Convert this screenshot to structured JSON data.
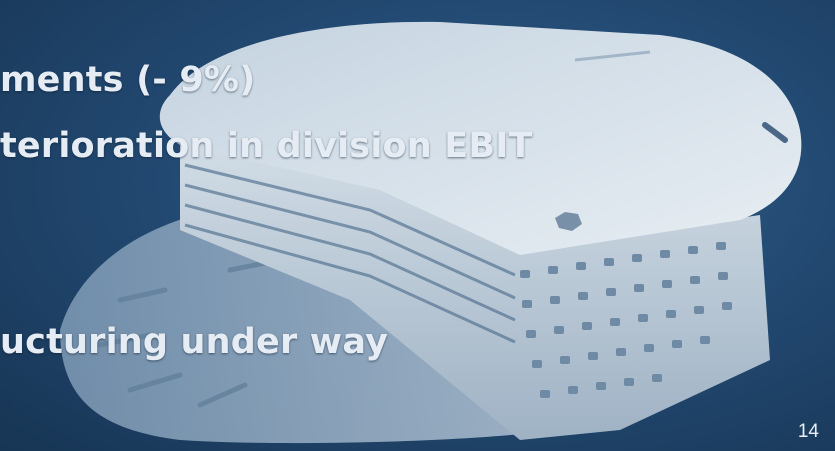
{
  "slide": {
    "lines": [
      "ments (- 9%)",
      "terioration in division EBIT",
      "ucturing under way"
    ],
    "page_number": "14"
  },
  "colors": {
    "background": "#234a73",
    "text": "#e6ecf3",
    "object": "#dfe6ec"
  },
  "image": {
    "subject": "component-photo"
  }
}
